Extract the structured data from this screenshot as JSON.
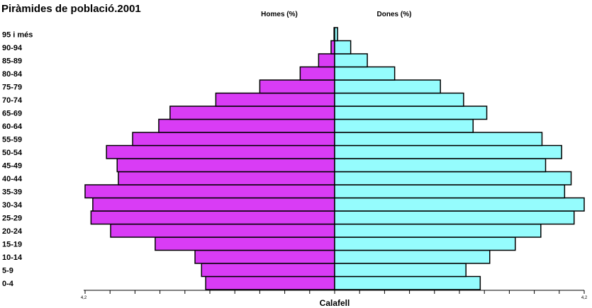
{
  "chart_data": {
    "type": "bar",
    "orientation": "horizontal",
    "title": "Piràmides de població.2001",
    "xlabel": "Calafell",
    "xlim": [
      -4.2,
      4.2
    ],
    "tick_labels": {
      "left": "4,2",
      "right": "4,2"
    },
    "grid": false,
    "categories": [
      "0-4",
      "5-9",
      "10-14",
      "15-19",
      "20-24",
      "25-29",
      "30-34",
      "35-39",
      "40-44",
      "45-49",
      "50-54",
      "55-59",
      "60-64",
      "65-69",
      "70-74",
      "75-79",
      "80-84",
      "85-89",
      "90-94",
      "95 i més"
    ],
    "series": [
      {
        "name": "Homes (%)",
        "color": "#d93cf5",
        "values": [
          2.17,
          2.24,
          2.35,
          3.02,
          3.77,
          4.1,
          4.07,
          4.2,
          3.64,
          3.66,
          3.84,
          3.4,
          2.96,
          2.77,
          2.0,
          1.26,
          0.58,
          0.27,
          0.06,
          0.01
        ]
      },
      {
        "name": "Dones (%)",
        "color": "#95fcfd",
        "values": [
          2.45,
          2.21,
          2.61,
          3.04,
          3.47,
          4.03,
          4.2,
          3.87,
          3.98,
          3.55,
          3.82,
          3.49,
          2.33,
          2.56,
          2.17,
          1.78,
          1.01,
          0.55,
          0.27,
          0.05
        ]
      }
    ]
  }
}
